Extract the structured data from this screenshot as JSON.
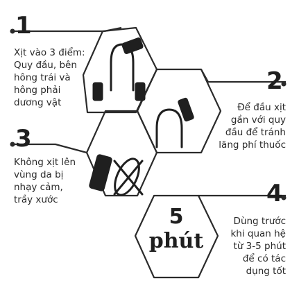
{
  "steps": [
    {
      "number": "1",
      "text_lines": [
        "Xịt vào 3 điểm:",
        "Quy đầu, bên",
        "hông trái và",
        "hông phải",
        "dương vật"
      ]
    },
    {
      "number": "2",
      "text_lines": [
        "Để đầu xịt",
        "gần với quy",
        "đầu để tránh",
        "lãng phí thuốc"
      ]
    },
    {
      "number": "3",
      "text_lines": [
        "Không xịt lên",
        "vùng da bị",
        "nhạy cảm,",
        "trầy xước"
      ]
    },
    {
      "number": "4",
      "text_lines": [
        "Dùng trước",
        "khi quan hệ",
        "từ 3-5 phút",
        "để có tác",
        "dụng tốt"
      ]
    }
  ],
  "time_badge": {
    "number": "5",
    "unit": "phút"
  },
  "icons": [
    "spray-on-three-points-icon",
    "spray-near-tip-icon",
    "no-spray-crossed-icon"
  ],
  "colors": {
    "line": "#2b2b2b",
    "text": "#2a2a2a",
    "background": "#ffffff"
  }
}
